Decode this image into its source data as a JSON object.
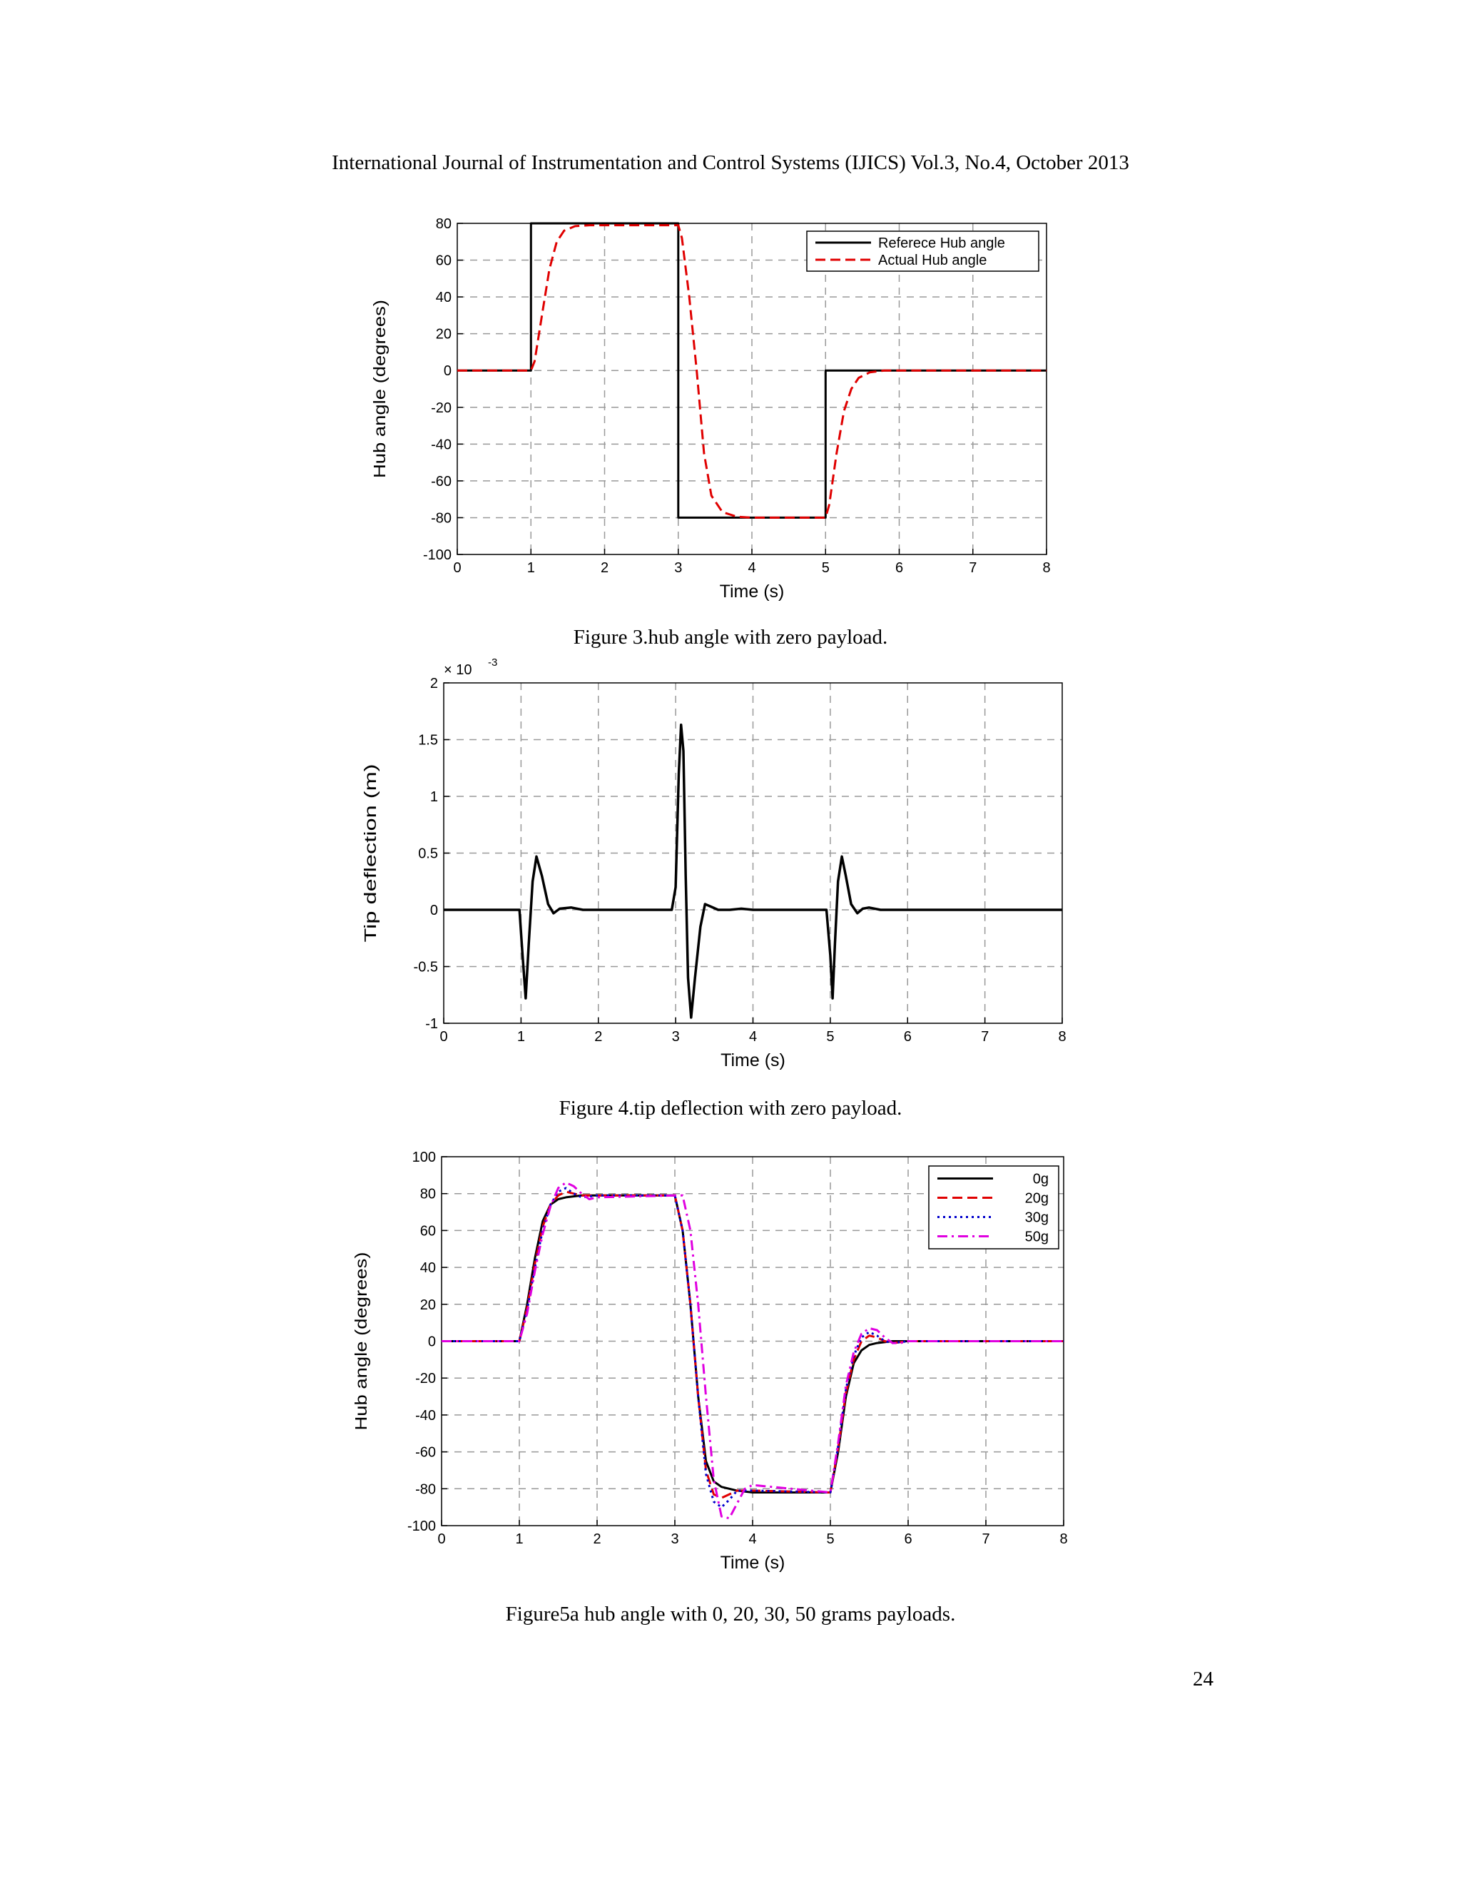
{
  "header": "International Journal of Instrumentation and Control Systems (IJICS) Vol.3, No.4, October 2013",
  "page_number": "24",
  "figures": [
    {
      "caption": "Figure 3.hub angle with zero payload."
    },
    {
      "caption": "Figure 4.tip deflection with zero payload."
    },
    {
      "caption": "Figure5a hub angle with 0, 20, 30, 50 grams payloads."
    }
  ],
  "chart_data": [
    {
      "type": "line",
      "title": "",
      "xlabel": "Time (s)",
      "ylabel": "Hub angle (degrees)",
      "xlim": [
        0,
        8
      ],
      "ylim": [
        -100,
        80
      ],
      "xticks": [
        0,
        1,
        2,
        3,
        4,
        5,
        6,
        7,
        8
      ],
      "yticks": [
        80,
        60,
        40,
        20,
        0,
        -20,
        -40,
        -60,
        -80,
        -100
      ],
      "grid": true,
      "legend_position": "top-right",
      "series": [
        {
          "name": "Referece Hub angle",
          "color": "#000000",
          "style": "solid",
          "x": [
            0,
            1,
            1,
            3,
            3,
            5,
            5,
            8
          ],
          "y": [
            0,
            0,
            80,
            80,
            -80,
            -80,
            0,
            0
          ]
        },
        {
          "name": "Actual Hub angle",
          "color": "#e00000",
          "style": "dashed",
          "x": [
            0,
            1,
            1.05,
            1.15,
            1.25,
            1.35,
            1.45,
            1.6,
            1.8,
            2.0,
            3.0,
            3.05,
            3.15,
            3.25,
            3.35,
            3.45,
            3.6,
            3.8,
            4.0,
            5.0,
            5.05,
            5.15,
            5.25,
            5.35,
            5.45,
            5.6,
            5.8,
            6.0,
            8.0
          ],
          "y": [
            0,
            0,
            5,
            30,
            55,
            70,
            76,
            78.5,
            79,
            79,
            79,
            72,
            40,
            0,
            -45,
            -68,
            -77,
            -79.5,
            -80,
            -80,
            -73,
            -45,
            -22,
            -10,
            -4,
            -1,
            0,
            0,
            0
          ]
        }
      ]
    },
    {
      "type": "line",
      "title": "",
      "xlabel": "Time (s)",
      "ylabel": "Tip deflection (m)",
      "y_multiplier": "× 10",
      "y_multiplier_exponent": "-3",
      "xlim": [
        0,
        8
      ],
      "ylim": [
        -1,
        2
      ],
      "xticks": [
        0,
        1,
        2,
        3,
        4,
        5,
        6,
        7,
        8
      ],
      "yticks": [
        2,
        1.5,
        1,
        0.5,
        0,
        -0.5,
        -1
      ],
      "grid": true,
      "series": [
        {
          "name": "",
          "color": "#000000",
          "style": "solid",
          "x": [
            0,
            0.98,
            1.02,
            1.06,
            1.1,
            1.15,
            1.2,
            1.27,
            1.35,
            1.42,
            1.5,
            1.65,
            1.8,
            2.95,
            3.0,
            3.04,
            3.07,
            3.1,
            3.13,
            3.16,
            3.2,
            3.25,
            3.32,
            3.38,
            3.45,
            3.55,
            3.7,
            3.85,
            4.0,
            4.95,
            5.0,
            5.03,
            5.06,
            5.1,
            5.15,
            5.2,
            5.27,
            5.35,
            5.42,
            5.5,
            5.65,
            5.8,
            8.0
          ],
          "y": [
            0,
            0,
            -0.4,
            -0.78,
            -0.3,
            0.25,
            0.47,
            0.3,
            0.05,
            -0.03,
            0.01,
            0.02,
            0,
            0,
            0.2,
            1.2,
            1.63,
            1.4,
            0.3,
            -0.6,
            -0.95,
            -0.6,
            -0.15,
            0.05,
            0.03,
            0,
            0,
            0.01,
            0,
            0,
            -0.4,
            -0.78,
            -0.3,
            0.25,
            0.47,
            0.3,
            0.05,
            -0.03,
            0.01,
            0.02,
            0,
            0,
            0
          ]
        }
      ]
    },
    {
      "type": "line",
      "title": "",
      "xlabel": "Time (s)",
      "ylabel": "Hub angle (degrees)",
      "xlim": [
        0,
        8
      ],
      "ylim": [
        -100,
        100
      ],
      "xticks": [
        0,
        1,
        2,
        3,
        4,
        5,
        6,
        7,
        8
      ],
      "yticks": [
        100,
        80,
        60,
        40,
        20,
        0,
        -20,
        -40,
        -60,
        -80,
        -100
      ],
      "grid": true,
      "legend_position": "top-right",
      "series": [
        {
          "name": "0g",
          "color": "#000000",
          "style": "solid",
          "x": [
            0,
            1,
            1.1,
            1.2,
            1.3,
            1.4,
            1.5,
            1.6,
            1.8,
            2.0,
            3.0,
            3.1,
            3.2,
            3.3,
            3.4,
            3.5,
            3.6,
            3.8,
            4.0,
            5.0,
            5.1,
            5.2,
            5.3,
            5.4,
            5.5,
            5.6,
            5.8,
            6.0,
            8.0
          ],
          "y": [
            0,
            0,
            20,
            45,
            65,
            74,
            77,
            78,
            79,
            79,
            79,
            60,
            20,
            -30,
            -65,
            -76,
            -79,
            -81,
            -82,
            -82,
            -60,
            -30,
            -12,
            -5,
            -2,
            -1,
            0,
            0,
            0
          ]
        },
        {
          "name": "20g",
          "color": "#e00000",
          "style": "dashed",
          "x": [
            0,
            1,
            1.1,
            1.2,
            1.3,
            1.4,
            1.5,
            1.6,
            1.7,
            1.8,
            2.0,
            3.0,
            3.1,
            3.2,
            3.3,
            3.4,
            3.5,
            3.6,
            3.7,
            3.8,
            4.0,
            5.0,
            5.1,
            5.2,
            5.3,
            5.4,
            5.5,
            5.6,
            5.7,
            5.8,
            6.0,
            8.0
          ],
          "y": [
            0,
            0,
            18,
            42,
            62,
            74,
            79,
            81,
            80,
            79,
            79,
            79,
            60,
            20,
            -30,
            -70,
            -83,
            -85,
            -83,
            -81,
            -81,
            -82,
            -58,
            -28,
            -10,
            0,
            3,
            2,
            0,
            -1,
            0,
            0
          ]
        },
        {
          "name": "30g",
          "color": "#0000cc",
          "style": "dotted",
          "x": [
            0,
            1,
            1.1,
            1.2,
            1.3,
            1.4,
            1.5,
            1.6,
            1.7,
            1.8,
            2.0,
            3.0,
            3.1,
            3.2,
            3.3,
            3.4,
            3.5,
            3.6,
            3.7,
            3.8,
            4.0,
            5.0,
            5.1,
            5.2,
            5.3,
            5.4,
            5.5,
            5.6,
            5.7,
            5.8,
            6.0,
            8.0
          ],
          "y": [
            0,
            0,
            17,
            40,
            60,
            74,
            81,
            83,
            80,
            78,
            79,
            79,
            60,
            20,
            -30,
            -72,
            -87,
            -90,
            -86,
            -81,
            -81,
            -82,
            -57,
            -26,
            -8,
            2,
            5,
            3,
            0,
            -1,
            0,
            0
          ]
        },
        {
          "name": "50g",
          "color": "#e000e0",
          "style": "dashdot",
          "x": [
            0,
            1,
            1.1,
            1.2,
            1.3,
            1.4,
            1.5,
            1.6,
            1.7,
            1.8,
            1.9,
            2.0,
            3.0,
            3.1,
            3.2,
            3.3,
            3.4,
            3.5,
            3.6,
            3.7,
            3.8,
            3.9,
            4.0,
            5.0,
            5.1,
            5.2,
            5.3,
            5.4,
            5.5,
            5.6,
            5.7,
            5.8,
            5.9,
            6.0,
            8.0
          ],
          "y": [
            0,
            0,
            15,
            38,
            58,
            73,
            83,
            86,
            84,
            80,
            77,
            78,
            79,
            79,
            60,
            20,
            -30,
            -75,
            -95,
            -96,
            -88,
            -80,
            -78,
            -82,
            -55,
            -24,
            -6,
            4,
            7,
            6,
            2,
            -1,
            -1,
            0,
            0
          ]
        }
      ]
    }
  ]
}
